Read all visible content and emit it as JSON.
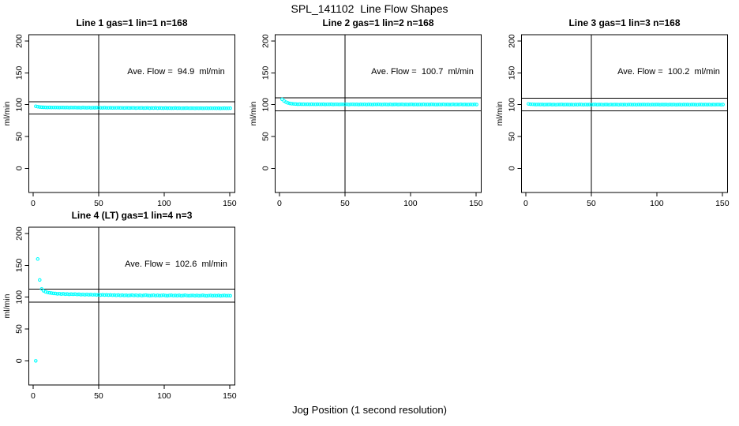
{
  "figure": {
    "main_title": "SPL_141102  Line Flow Shapes",
    "x_axis_label": "Jog Position (1 second resolution)",
    "background": "#FFFFFF",
    "axis_color": "#000000"
  },
  "chart_data": [
    {
      "type": "scatter",
      "title": "Line 1 gas=1 lin=1 n=168",
      "annotation": "Ave. Flow =  94.9  ml/min",
      "ave_flow_ml_min": 94.9,
      "n": 168,
      "ylabel": "ml/min",
      "xlim": [
        -3.3,
        154
      ],
      "ylim": [
        -38,
        210
      ],
      "x_ticks": [
        0,
        50,
        100,
        150
      ],
      "y_ticks": [
        0,
        50,
        100,
        150,
        200
      ],
      "vline_x": 50,
      "hlines": [
        85.4,
        104.4
      ],
      "marker_color": "#00FFFF",
      "x_start": 2,
      "x_step": 1.5,
      "y_values": [
        97.5,
        96.9,
        96.4,
        96.1,
        95.9,
        95.8,
        95.6,
        95.8,
        95.5,
        95.7,
        95.5,
        95.6,
        95.4,
        95.7,
        95.5,
        95.4,
        95.6,
        95.3,
        95.5,
        95.4,
        95.5,
        95.3,
        95.4,
        95.2,
        95.5,
        95.3,
        95.2,
        95.4,
        95.1,
        95.3,
        95.2,
        95.4,
        95.1,
        95.2,
        95.0,
        95.3,
        95.1,
        95.0,
        95.2,
        94.9,
        95.1,
        95.0,
        95.2,
        94.9,
        95.0,
        94.8,
        95.1,
        94.9,
        94.8,
        95.0,
        94.9,
        94.7,
        95.0,
        94.8,
        94.9,
        94.7,
        94.8,
        95.0,
        94.6,
        94.8,
        94.7,
        94.9,
        94.6,
        94.8,
        94.7,
        94.5,
        94.8,
        94.6,
        94.7,
        94.5,
        94.6,
        94.8,
        94.5,
        94.7,
        94.4,
        94.6,
        94.5,
        94.7,
        94.4,
        94.6,
        94.5,
        94.3,
        94.6,
        94.4,
        94.5,
        94.3,
        94.4,
        94.6,
        94.3,
        94.5,
        94.4,
        94.6,
        94.3,
        94.5,
        94.2,
        94.4,
        94.5,
        94.3,
        94.4,
        94.5
      ]
    },
    {
      "type": "scatter",
      "title": "Line 2 gas=1 lin=2 n=168",
      "annotation": "Ave. Flow =  100.7  ml/min",
      "ave_flow_ml_min": 100.7,
      "n": 168,
      "ylabel": "ml/min",
      "xlim": [
        -3.3,
        154
      ],
      "ylim": [
        -38,
        210
      ],
      "x_ticks": [
        0,
        50,
        100,
        150
      ],
      "y_ticks": [
        0,
        50,
        100,
        150,
        200
      ],
      "vline_x": 50,
      "hlines": [
        90.6,
        110.8
      ],
      "marker_color": "#00FFFF",
      "x_start": 2,
      "x_step": 1.5,
      "y_values": [
        108.5,
        105.8,
        104.0,
        102.8,
        102.0,
        101.5,
        101.2,
        101.0,
        100.8,
        100.9,
        100.7,
        100.8,
        100.6,
        100.7,
        100.5,
        100.8,
        100.6,
        100.5,
        100.7,
        100.6,
        100.5,
        100.7,
        100.4,
        100.6,
        100.5,
        100.7,
        100.4,
        100.5,
        100.6,
        100.4,
        100.6,
        100.5,
        100.4,
        100.6,
        100.3,
        100.5,
        100.6,
        100.4,
        100.5,
        100.3,
        100.5,
        100.4,
        100.6,
        100.3,
        100.5,
        100.4,
        100.3,
        100.5,
        100.4,
        100.6,
        100.4,
        100.3,
        100.5,
        100.4,
        100.2,
        100.5,
        100.3,
        100.4,
        100.5,
        100.3,
        100.4,
        100.5,
        100.3,
        100.4,
        100.2,
        100.4,
        100.5,
        100.3,
        100.4,
        100.2,
        100.4,
        100.3,
        100.5,
        100.2,
        100.4,
        100.3,
        100.5,
        100.4,
        100.2,
        100.3,
        100.4,
        100.2,
        100.5,
        100.3,
        100.4,
        100.2,
        100.3,
        100.5,
        100.2,
        100.4,
        100.3,
        100.5,
        100.2,
        100.4,
        100.3,
        100.2,
        100.4,
        100.3,
        100.5,
        100.3
      ]
    },
    {
      "type": "scatter",
      "title": "Line 3 gas=1 lin=3 n=168",
      "annotation": "Ave. Flow =  100.2  ml/min",
      "ave_flow_ml_min": 100.2,
      "n": 168,
      "ylabel": "ml/min",
      "xlim": [
        -3.3,
        154
      ],
      "ylim": [
        -38,
        210
      ],
      "x_ticks": [
        0,
        50,
        100,
        150
      ],
      "y_ticks": [
        0,
        50,
        100,
        150,
        200
      ],
      "vline_x": 50,
      "hlines": [
        90.2,
        110.2
      ],
      "marker_color": "#00FFFF",
      "x_start": 2,
      "x_step": 1.5,
      "y_values": [
        101.2,
        100.8,
        100.6,
        100.4,
        100.3,
        100.4,
        100.2,
        100.4,
        100.1,
        100.3,
        100.2,
        100.4,
        100.1,
        100.3,
        100.0,
        100.3,
        100.2,
        100.4,
        100.1,
        100.2,
        100.3,
        100.1,
        100.2,
        100.0,
        100.3,
        100.1,
        100.4,
        100.2,
        100.0,
        100.3,
        100.1,
        100.3,
        100.0,
        100.2,
        100.4,
        100.1,
        100.2,
        100.3,
        100.0,
        100.2,
        100.3,
        100.0,
        100.2,
        100.1,
        100.3,
        100.2,
        100.0,
        100.3,
        100.1,
        100.2,
        100.0,
        100.2,
        100.3,
        100.1,
        100.2,
        100.0,
        100.3,
        100.1,
        100.2,
        100.3,
        100.1,
        100.2,
        100.0,
        100.3,
        100.1,
        100.2,
        100.3,
        100.0,
        100.2,
        100.1,
        100.2,
        100.0,
        100.3,
        100.1,
        100.2,
        100.0,
        100.1,
        100.3,
        100.0,
        100.2,
        100.1,
        100.3,
        100.0,
        100.2,
        100.3,
        100.1,
        100.0,
        100.2,
        100.3,
        100.1,
        100.2,
        100.1,
        100.3,
        100.0,
        100.2,
        100.1,
        100.3,
        100.2,
        100.0,
        100.2
      ]
    },
    {
      "type": "scatter",
      "title": "Line 4 (LT) gas=1 lin=4 n=3",
      "annotation": "Ave. Flow =  102.6  ml/min",
      "ave_flow_ml_min": 102.6,
      "n": 3,
      "ylabel": "ml/min",
      "xlim": [
        -3.3,
        154
      ],
      "ylim": [
        -38,
        210
      ],
      "x_ticks": [
        0,
        50,
        100,
        150
      ],
      "y_ticks": [
        0,
        50,
        100,
        150,
        200
      ],
      "vline_x": 50,
      "hlines": [
        92.3,
        112.9
      ],
      "marker_color": "#00FFFF",
      "x_start": 2,
      "x_step": 1.5,
      "y_values": [
        0,
        160,
        127,
        113,
        110,
        108.5,
        107.5,
        107,
        106.5,
        106,
        105.8,
        105.2,
        105.6,
        104.9,
        105.3,
        104.7,
        105.1,
        104.5,
        104.9,
        104.6,
        104.8,
        104.2,
        104.6,
        104.0,
        104.4,
        103.9,
        104.3,
        103.8,
        104.1,
        103.7,
        104.0,
        103.5,
        103.9,
        103.4,
        103.8,
        103.3,
        103.6,
        103.2,
        103.5,
        103.1,
        103.4,
        102.9,
        103.3,
        102.8,
        103.2,
        102.7,
        103.0,
        102.6,
        102.9,
        103.2,
        102.8,
        103.1,
        102.6,
        103.0,
        102.5,
        102.9,
        103.2,
        102.7,
        102.4,
        102.8,
        103.0,
        102.5,
        102.9,
        102.4,
        102.7,
        103.1,
        102.6,
        102.3,
        102.7,
        103.0,
        102.5,
        102.8,
        102.4,
        102.9,
        102.3,
        102.6,
        103.0,
        102.5,
        102.2,
        102.6,
        102.8,
        102.3,
        102.7,
        102.2,
        102.5,
        102.9,
        102.4,
        102.1,
        102.5,
        102.8,
        102.3,
        102.6,
        102.2,
        102.7,
        102.1,
        102.4,
        102.8,
        102.3,
        102.5,
        102.2
      ]
    }
  ]
}
